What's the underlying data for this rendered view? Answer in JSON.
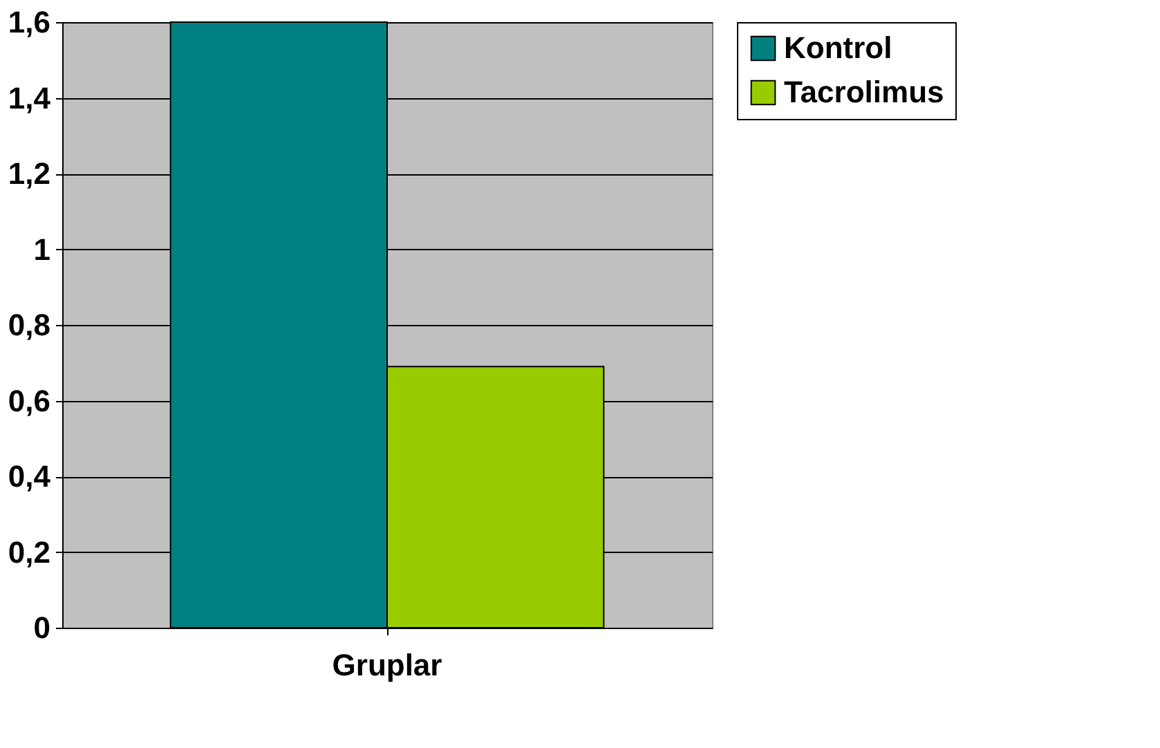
{
  "chart_data": {
    "type": "bar",
    "categories": [
      "Gruplar"
    ],
    "series": [
      {
        "name": "Kontrol",
        "color": "#008080",
        "values": [
          1.6
        ]
      },
      {
        "name": "Tacrolimus",
        "color": "#99cc00",
        "values": [
          0.69
        ]
      }
    ],
    "ylim": [
      0,
      1.6
    ],
    "yticks": [
      {
        "value": 0,
        "label": "0"
      },
      {
        "value": 0.2,
        "label": "0,2"
      },
      {
        "value": 0.4,
        "label": "0,4"
      },
      {
        "value": 0.6,
        "label": "0,6"
      },
      {
        "value": 0.8,
        "label": "0,8"
      },
      {
        "value": 1,
        "label": "1"
      },
      {
        "value": 1.2,
        "label": "1,2"
      },
      {
        "value": 1.4,
        "label": "1,4"
      },
      {
        "value": 1.6,
        "label": "1,6"
      }
    ],
    "grid": "y",
    "legend": "right"
  }
}
